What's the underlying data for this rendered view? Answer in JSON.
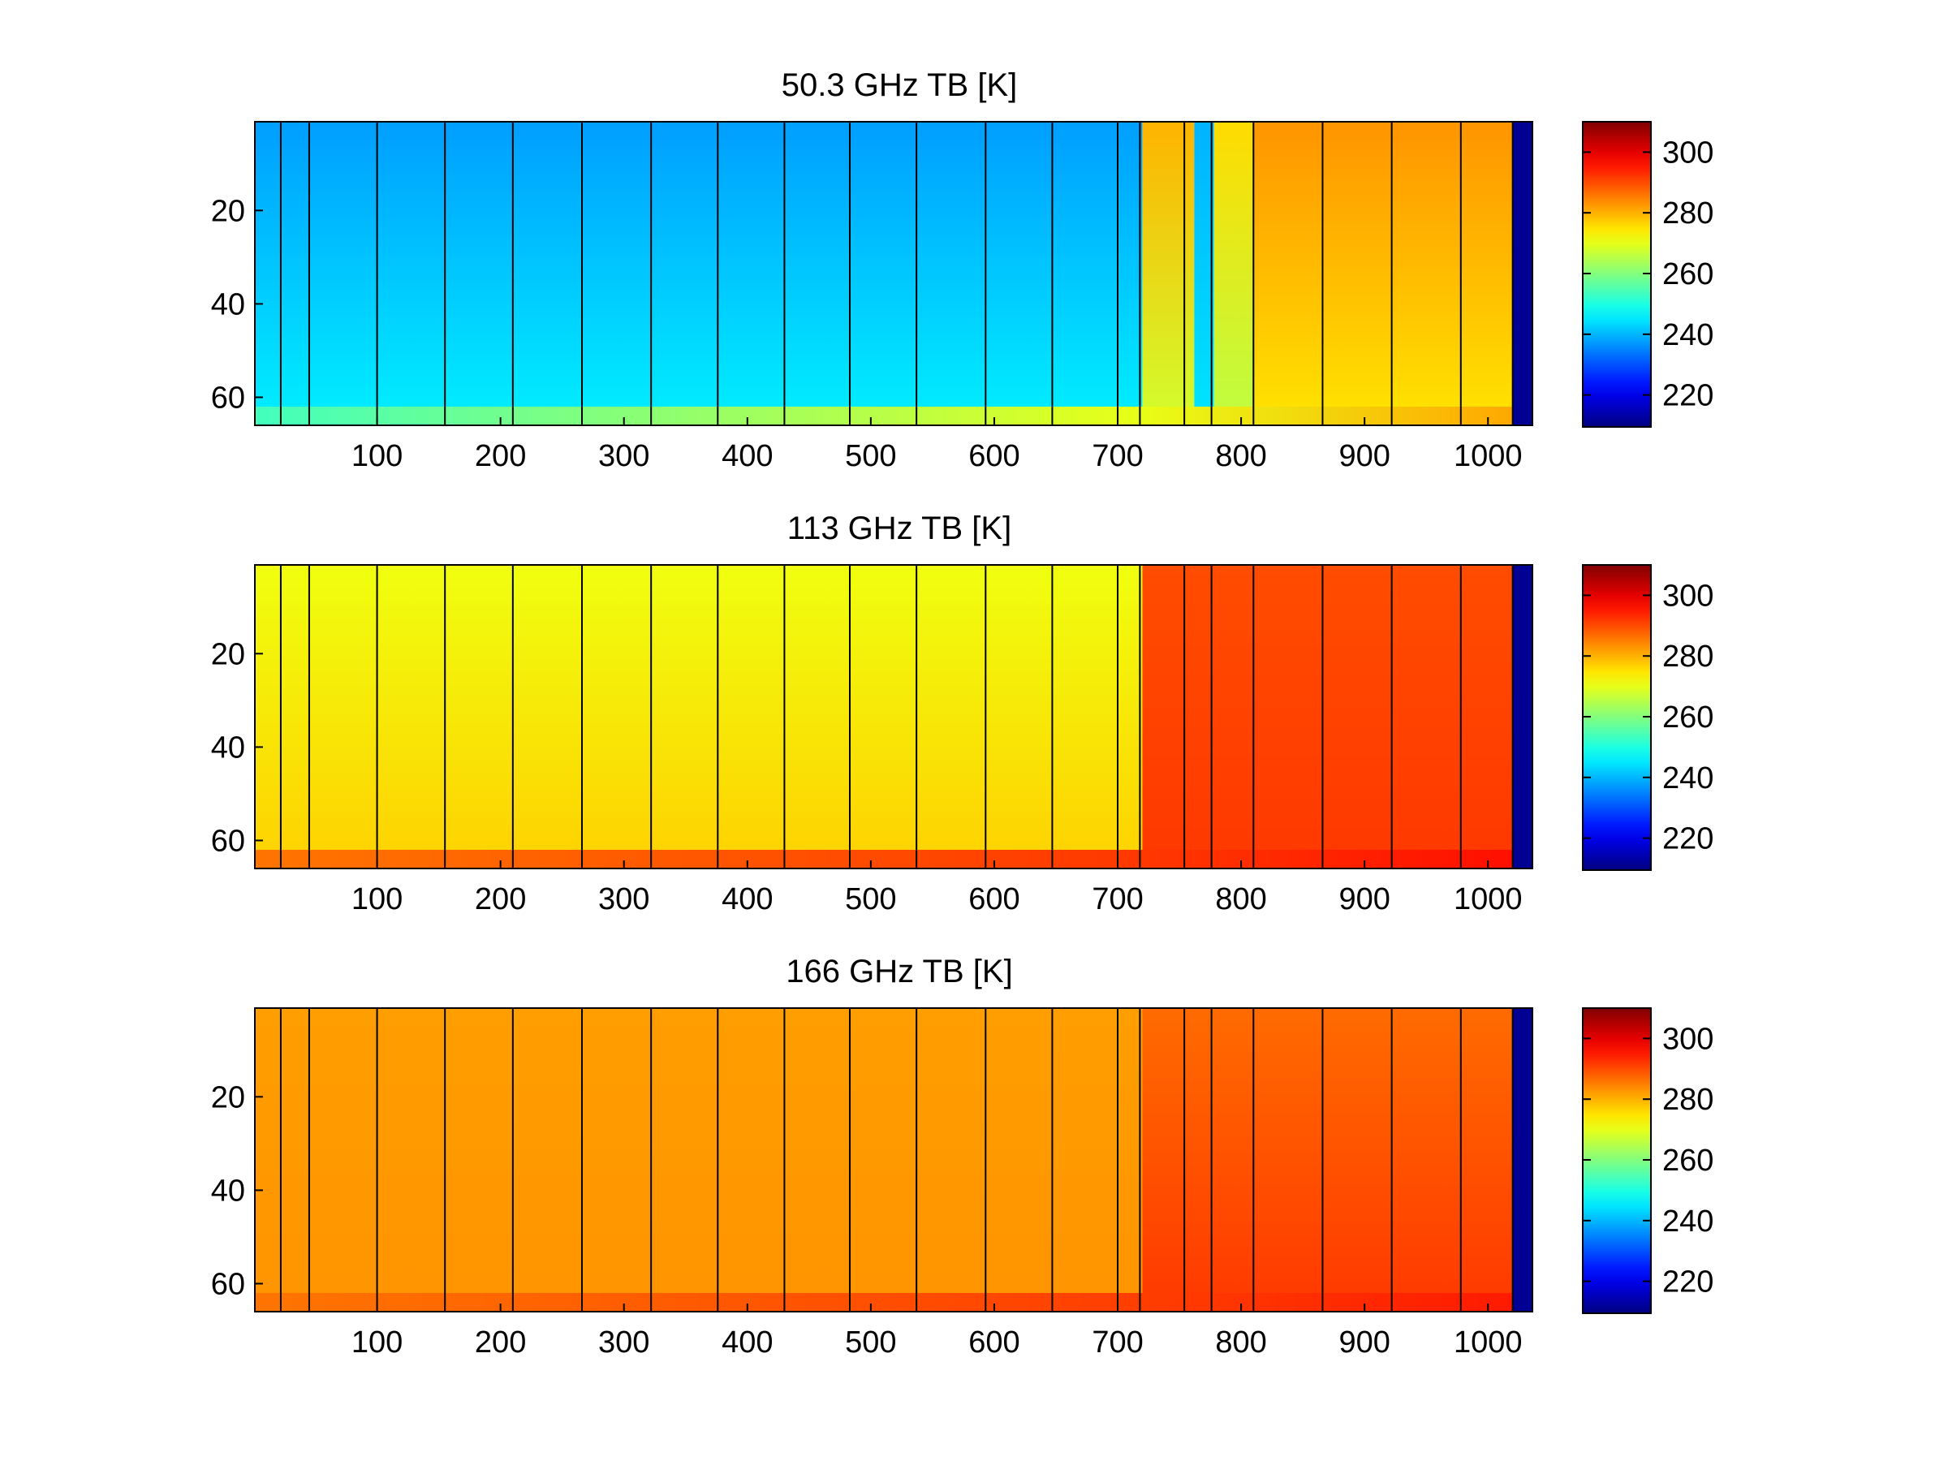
{
  "chart_data": [
    {
      "type": "heatmap",
      "title": "50.3 GHz TB [K]",
      "xlabel": "",
      "ylabel": "",
      "xlim": [
        1,
        1036
      ],
      "ylim": [
        1,
        66
      ],
      "y_reversed": true,
      "xticks": [
        100,
        200,
        300,
        400,
        500,
        600,
        700,
        800,
        900,
        1000
      ],
      "yticks": [
        20,
        40,
        60
      ],
      "colormap": "jet",
      "clim": [
        210,
        310
      ],
      "colorbar_ticks": [
        220,
        240,
        260,
        280,
        300
      ],
      "boundaries": [
        22,
        45,
        100,
        155,
        210,
        266,
        322,
        376,
        430,
        483,
        537,
        593,
        647,
        700,
        718,
        754,
        776,
        810,
        866,
        922,
        978,
        1020
      ],
      "segments": [
        {
          "x0": 1,
          "x1": 720,
          "top": 238,
          "bottom": 246
        },
        {
          "x0": 720,
          "x1": 762,
          "top": 280,
          "bottom": 268
        },
        {
          "x0": 762,
          "x1": 778,
          "top": 240,
          "bottom": 245
        },
        {
          "x0": 778,
          "x1": 810,
          "top": 276,
          "bottom": 266
        },
        {
          "x0": 810,
          "x1": 1020,
          "top": 283,
          "bottom": 275
        },
        {
          "x0": 1020,
          "x1": 1036,
          "top": 212,
          "bottom": 212
        }
      ],
      "bottom_band": {
        "from_row": 62,
        "value_low_x": 254,
        "value_high_x": 281
      }
    },
    {
      "type": "heatmap",
      "title": "113 GHz TB [K]",
      "xlabel": "",
      "ylabel": "",
      "xlim": [
        1,
        1036
      ],
      "ylim": [
        1,
        66
      ],
      "y_reversed": true,
      "xticks": [
        100,
        200,
        300,
        400,
        500,
        600,
        700,
        800,
        900,
        1000
      ],
      "yticks": [
        20,
        40,
        60
      ],
      "colormap": "jet",
      "clim": [
        210,
        310
      ],
      "colorbar_ticks": [
        220,
        240,
        260,
        280,
        300
      ],
      "boundaries": [
        22,
        45,
        100,
        155,
        210,
        266,
        322,
        376,
        430,
        483,
        537,
        593,
        647,
        700,
        718,
        754,
        776,
        810,
        866,
        922,
        978,
        1020
      ],
      "segments": [
        {
          "x0": 1,
          "x1": 720,
          "top": 271,
          "bottom": 277
        },
        {
          "x0": 720,
          "x1": 1020,
          "top": 290,
          "bottom": 292
        },
        {
          "x0": 1020,
          "x1": 1036,
          "top": 212,
          "bottom": 212
        }
      ],
      "bottom_band": {
        "from_row": 62,
        "value_low_x": 286,
        "value_high_x": 296
      }
    },
    {
      "type": "heatmap",
      "title": "166 GHz TB [K]",
      "xlabel": "",
      "ylabel": "",
      "xlim": [
        1,
        1036
      ],
      "ylim": [
        1,
        66
      ],
      "y_reversed": true,
      "xticks": [
        100,
        200,
        300,
        400,
        500,
        600,
        700,
        800,
        900,
        1000
      ],
      "yticks": [
        20,
        40,
        60
      ],
      "colormap": "jet",
      "clim": [
        210,
        310
      ],
      "colorbar_ticks": [
        220,
        240,
        260,
        280,
        300
      ],
      "boundaries": [
        22,
        45,
        100,
        155,
        210,
        266,
        322,
        376,
        430,
        483,
        537,
        593,
        647,
        700,
        718,
        754,
        776,
        810,
        866,
        922,
        978,
        1020
      ],
      "segments": [
        {
          "x0": 1,
          "x1": 720,
          "top": 282,
          "bottom": 283
        },
        {
          "x0": 720,
          "x1": 1020,
          "top": 287,
          "bottom": 292
        },
        {
          "x0": 1020,
          "x1": 1036,
          "top": 212,
          "bottom": 212
        }
      ],
      "bottom_band": {
        "from_row": 62,
        "value_low_x": 286,
        "value_high_x": 295
      }
    }
  ]
}
